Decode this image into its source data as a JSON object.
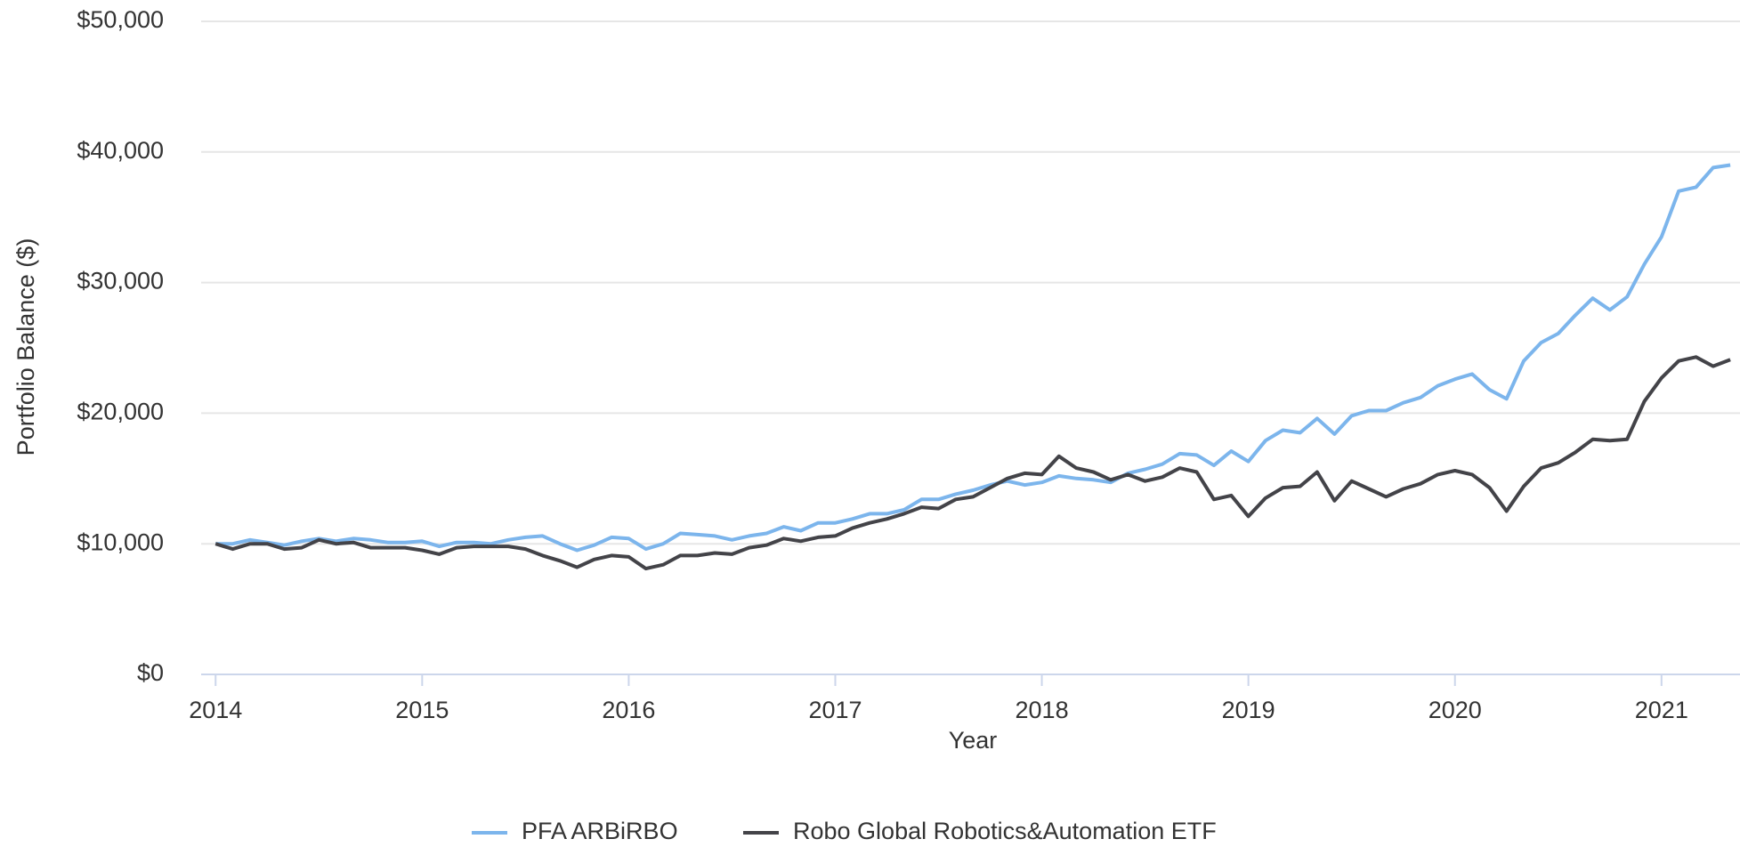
{
  "chart_data": {
    "type": "line",
    "xlabel": "Year",
    "ylabel": "Portfolio Balance ($)",
    "x": [
      2014.0,
      2014.083,
      2014.167,
      2014.25,
      2014.333,
      2014.417,
      2014.5,
      2014.583,
      2014.667,
      2014.75,
      2014.833,
      2014.917,
      2015.0,
      2015.083,
      2015.167,
      2015.25,
      2015.333,
      2015.417,
      2015.5,
      2015.583,
      2015.667,
      2015.75,
      2015.833,
      2015.917,
      2016.0,
      2016.083,
      2016.167,
      2016.25,
      2016.333,
      2016.417,
      2016.5,
      2016.583,
      2016.667,
      2016.75,
      2016.833,
      2016.917,
      2017.0,
      2017.083,
      2017.167,
      2017.25,
      2017.333,
      2017.417,
      2017.5,
      2017.583,
      2017.667,
      2017.75,
      2017.833,
      2017.917,
      2018.0,
      2018.083,
      2018.167,
      2018.25,
      2018.333,
      2018.417,
      2018.5,
      2018.583,
      2018.667,
      2018.75,
      2018.833,
      2018.917,
      2019.0,
      2019.083,
      2019.167,
      2019.25,
      2019.333,
      2019.417,
      2019.5,
      2019.583,
      2019.667,
      2019.75,
      2019.833,
      2019.917,
      2020.0,
      2020.083,
      2020.167,
      2020.25,
      2020.333,
      2020.417,
      2020.5,
      2020.583,
      2020.667,
      2020.75,
      2020.833,
      2020.917,
      2021.0,
      2021.083,
      2021.167,
      2021.25,
      2021.333
    ],
    "series": [
      {
        "name": "PFA ARBiRBO",
        "color": "#7cb5ec",
        "values": [
          10000,
          10000,
          10300,
          10100,
          9900,
          10200,
          10400,
          10200,
          10400,
          10300,
          10100,
          10100,
          10200,
          9800,
          10100,
          10100,
          10000,
          10300,
          10500,
          10600,
          10000,
          9500,
          9900,
          10500,
          10400,
          9600,
          10000,
          10800,
          10700,
          10600,
          10300,
          10600,
          10800,
          11300,
          11000,
          11600,
          11600,
          11900,
          12300,
          12300,
          12600,
          13400,
          13400,
          13800,
          14100,
          14500,
          14800,
          14500,
          14700,
          15200,
          15000,
          14900,
          14700,
          15400,
          15700,
          16100,
          16900,
          16800,
          16000,
          17100,
          16300,
          17900,
          18700,
          18500,
          19600,
          18400,
          19800,
          20200,
          20200,
          20800,
          21200,
          22100,
          22600,
          23000,
          21800,
          21100,
          24000,
          25400,
          26100,
          27500,
          28800,
          27900,
          28900,
          31400,
          33500,
          37000,
          37300,
          38800,
          39000
        ]
      },
      {
        "name": "Robo Global Robotics&Automation ETF",
        "color": "#434348",
        "values": [
          10000,
          9600,
          10000,
          10000,
          9600,
          9700,
          10300,
          10000,
          10100,
          9700,
          9700,
          9700,
          9500,
          9200,
          9700,
          9800,
          9800,
          9800,
          9600,
          9100,
          8700,
          8200,
          8800,
          9100,
          9000,
          8100,
          8400,
          9100,
          9100,
          9300,
          9200,
          9700,
          9900,
          10400,
          10200,
          10500,
          10600,
          11200,
          11600,
          11900,
          12300,
          12800,
          12700,
          13400,
          13600,
          14300,
          15000,
          15400,
          15300,
          16700,
          15800,
          15500,
          14900,
          15300,
          14800,
          15100,
          15800,
          15500,
          13400,
          13700,
          12100,
          13500,
          14300,
          14400,
          15500,
          13300,
          14800,
          14200,
          13600,
          14200,
          14600,
          15300,
          15600,
          15300,
          14300,
          12500,
          14400,
          15800,
          16200,
          17000,
          18000,
          17900,
          18000,
          20900,
          22700,
          24000,
          24300,
          23600,
          24100
        ]
      }
    ],
    "xlim": [
      2013.93,
      2021.38
    ],
    "xticks": [
      2014,
      2015,
      2016,
      2017,
      2018,
      2019,
      2020,
      2021
    ],
    "ylim": [
      0,
      50000
    ],
    "yticks": [
      {
        "value": 0,
        "label": "$0"
      },
      {
        "value": 10000,
        "label": "$10,000"
      },
      {
        "value": 20000,
        "label": "$20,000"
      },
      {
        "value": 30000,
        "label": "$30,000"
      },
      {
        "value": 40000,
        "label": "$40,000"
      },
      {
        "value": 50000,
        "label": "$50,000"
      }
    ],
    "grid": true,
    "legend": "bottom"
  }
}
